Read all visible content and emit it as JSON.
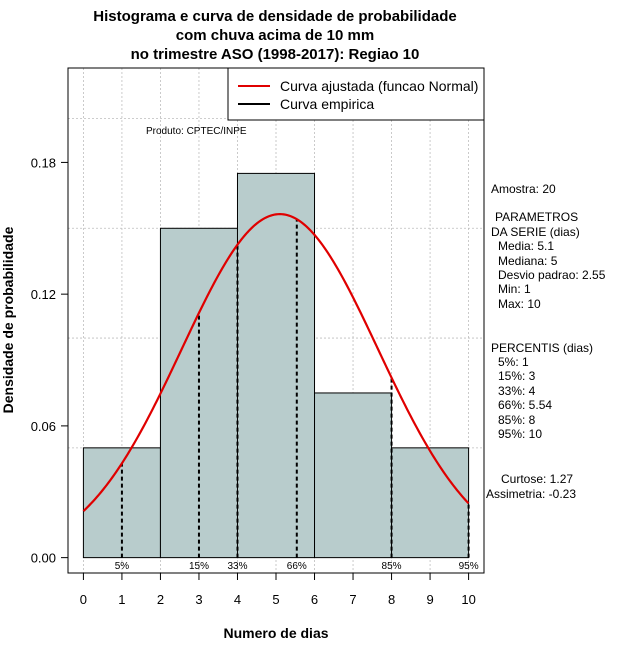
{
  "chart_data": {
    "type": "bar",
    "title_lines": [
      "Histograma e curva de densidade de probabilidade",
      "com chuva acima de 10 mm",
      "no trimestre ASO (1998-2017): Regiao 10"
    ],
    "xlabel": "Numero de dias",
    "ylabel": "Densidade de probabilidade",
    "xlim": [
      -0.4,
      10.4
    ],
    "ylim": [
      -0.007,
      0.223
    ],
    "x_ticks": [
      0,
      1,
      2,
      3,
      4,
      5,
      6,
      7,
      8,
      9,
      10
    ],
    "y_ticks": [
      0.0,
      0.06,
      0.12,
      0.18
    ],
    "y_tick_labels": [
      "0.00",
      "0.06",
      "0.12",
      "0.18"
    ],
    "grid_v": [
      0,
      1,
      2,
      3,
      4,
      5,
      6,
      7,
      8,
      9,
      10
    ],
    "grid_h": [
      0.05,
      0.1,
      0.15,
      0.2
    ],
    "grid": true,
    "histogram": {
      "breaks": [
        0,
        2,
        4,
        6,
        8,
        10
      ],
      "density": [
        0.05,
        0.15,
        0.175,
        0.075,
        0.05
      ],
      "fill": "#b8cccc"
    },
    "normal_curve": {
      "mean": 5.1,
      "sd": 2.55,
      "color": "#e00000"
    },
    "percentiles": [
      {
        "label": "5%",
        "x": 1
      },
      {
        "label": "15%",
        "x": 3
      },
      {
        "label": "33%",
        "x": 4
      },
      {
        "label": "66%",
        "x": 5.54
      },
      {
        "label": "85%",
        "x": 8
      },
      {
        "label": "95%",
        "x": 10
      }
    ],
    "legend": {
      "placement": "top-right",
      "entries": [
        {
          "label": "Curva ajustada (funcao Normal)",
          "color": "#e00000"
        },
        {
          "label": "Curva empirica",
          "color": "#000000"
        }
      ]
    },
    "annotation": "Produto: CPTEC/INPE"
  },
  "side_panel": {
    "amostra": "Amostra: 20",
    "params_title_1": "PARAMETROS",
    "params_title_2": "DA SERIE (dias)",
    "params": [
      "Media: 5.1",
      "Mediana: 5",
      "Desvio padrao: 2.55",
      "Min: 1",
      "Max: 10"
    ],
    "perc_title": "PERCENTIS (dias)",
    "percs": [
      "5%: 1",
      "15%: 3",
      "33%: 4",
      "66%: 5.54",
      "85%: 8",
      "95%: 10"
    ],
    "curtose": "Curtose: 1.27",
    "assimetria": "Assimetria: -0.23"
  }
}
